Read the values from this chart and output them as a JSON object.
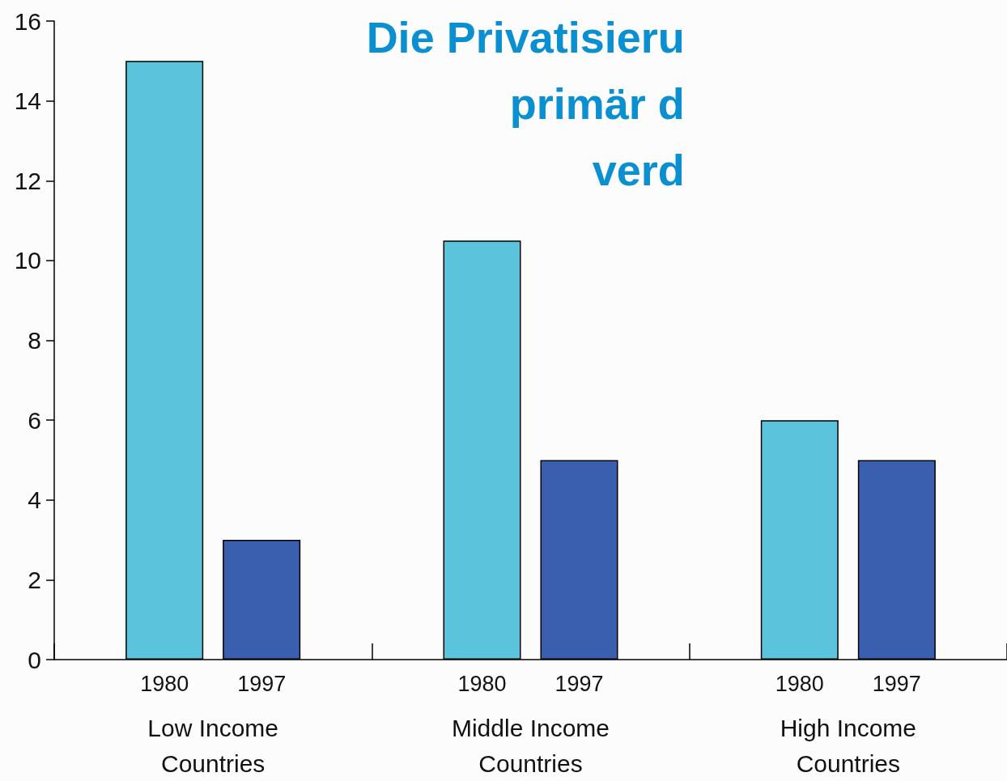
{
  "chart_data": {
    "type": "bar",
    "title": "Die Privatisieru\nprimär d\nverd",
    "categories": [
      "Low Income\nCountries",
      "Middle Income\nCountries",
      "High Income\nCountries"
    ],
    "series": [
      {
        "name": "1980",
        "color": "#5cc3dd",
        "values": [
          15,
          10.5,
          6
        ]
      },
      {
        "name": "1997",
        "color": "#3a5fae",
        "values": [
          3,
          5,
          5
        ]
      }
    ],
    "ylim": [
      0,
      16
    ],
    "yticks": [
      0,
      2,
      4,
      6,
      8,
      10,
      12,
      14,
      16
    ],
    "grid": false,
    "legend": false
  }
}
